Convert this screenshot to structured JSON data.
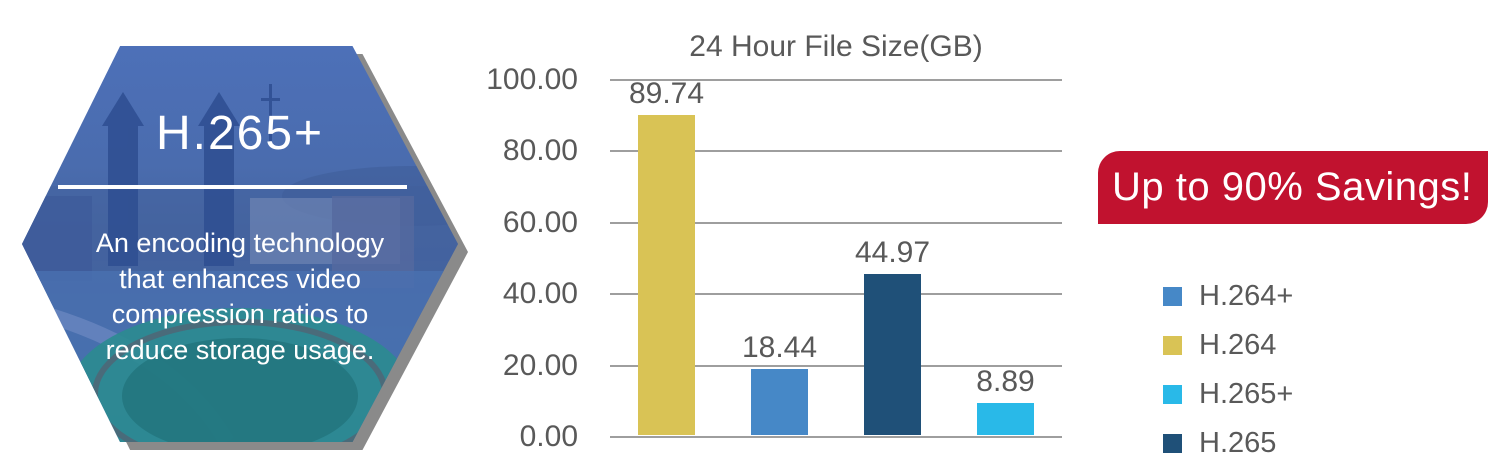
{
  "hexagon": {
    "title": "H.265+",
    "description_lines": [
      "An encoding technology",
      "that enhances video",
      "compression ratios to",
      "reduce storage usage."
    ]
  },
  "banner": {
    "text": "Up to 90% Savings!",
    "bg_color": "#c1122f",
    "text_color": "#ffffff"
  },
  "chart_data": {
    "type": "bar",
    "title": "24 Hour File Size(GB)",
    "categories": [
      "H.264",
      "H.264+",
      "H.265",
      "H.265+"
    ],
    "values": [
      89.74,
      18.44,
      44.97,
      8.89
    ],
    "data_labels": [
      "89.74",
      "18.44",
      "44.97",
      "8.89"
    ],
    "bar_colors": [
      "#d9c355",
      "#4688c7",
      "#1f5078",
      "#29b9e8"
    ],
    "xlabel": "",
    "ylabel": "",
    "ylim": [
      0,
      100
    ],
    "yticks": [
      "100.00",
      "80.00",
      "60.00",
      "40.00",
      "20.00",
      "0.00"
    ],
    "grid": true,
    "gridline_color": "#9e9e9e",
    "text_color": "#595959",
    "legend_position": "right"
  },
  "legend": {
    "items": [
      {
        "label": "H.264+",
        "color": "#4688c7"
      },
      {
        "label": "H.264",
        "color": "#d9c355"
      },
      {
        "label": "H.265+",
        "color": "#29b9e8"
      },
      {
        "label": "H.265",
        "color": "#1f5078"
      }
    ]
  }
}
